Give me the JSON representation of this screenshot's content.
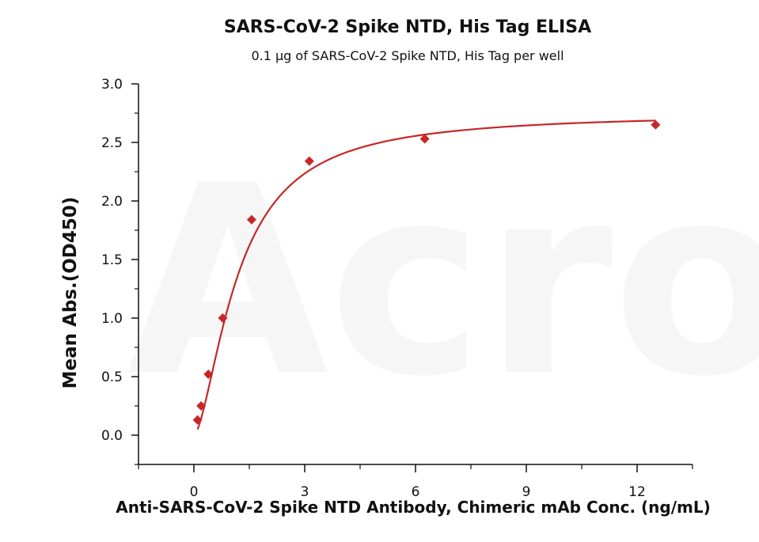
{
  "chart_data": {
    "type": "scatter",
    "title": "SARS-CoV-2 Spike NTD, His Tag ELISA",
    "subtitle": "0.1 μg of SARS-CoV-2 Spike NTD, His Tag per well",
    "xlabel": "Anti-SARS-CoV-2 Spike NTD Antibody, Chimeric mAb Conc. (ng/mL)",
    "ylabel": "Mean Abs.(OD450)",
    "xlim": [
      -1.5,
      13.5
    ],
    "ylim": [
      -0.25,
      3.0
    ],
    "x_ticks": [
      0,
      3,
      6,
      9,
      12
    ],
    "x_tick_labels": [
      "0",
      "3",
      "6",
      "9",
      "12"
    ],
    "y_ticks": [
      0.0,
      0.5,
      1.0,
      1.5,
      2.0,
      2.5,
      3.0
    ],
    "y_tick_labels": [
      "0.0",
      "0.5",
      "1.0",
      "1.5",
      "2.0",
      "2.5",
      "3.0"
    ],
    "grid": false,
    "watermark": "Acro BIOSYSTEMS",
    "series": [
      {
        "marker": "diamond",
        "color": "#c62828",
        "x": [
          0.098,
          0.195,
          0.391,
          0.781,
          1.563,
          3.125,
          6.25,
          12.5
        ],
        "y": [
          0.13,
          0.25,
          0.52,
          1.0,
          1.84,
          2.34,
          2.53,
          2.65
        ]
      }
    ],
    "fit_curve": {
      "color": "#c62828",
      "model": "4PL",
      "bottom": 0.0,
      "top": 2.75,
      "ec50": 1.2,
      "hill": 1.6
    }
  }
}
